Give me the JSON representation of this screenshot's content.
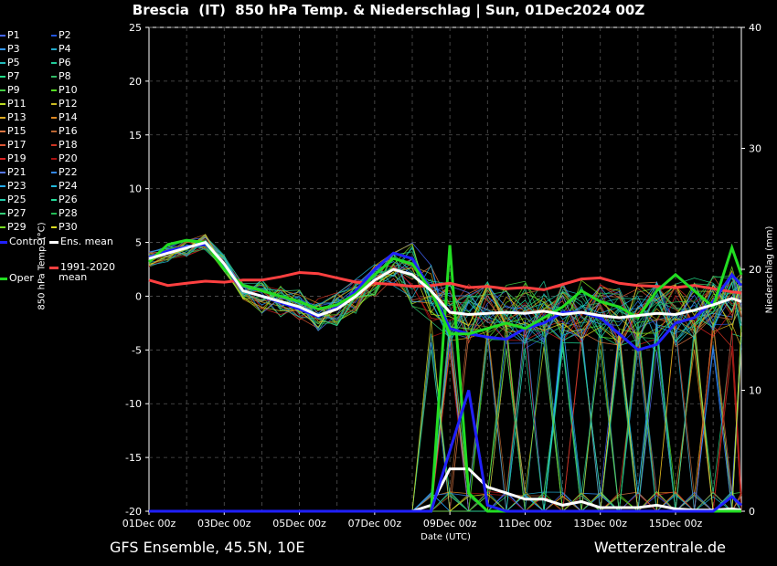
{
  "chart_data": {
    "type": "line",
    "title": "Brescia  (IT)  850 hPa Temp. & Niederschlag | Sun, 01Dec2024 00Z",
    "xlabel": "Date (UTC)",
    "ylabel_left": "850 hPa Temp. (°C)",
    "ylabel_right": "Niederschlag (mm)",
    "ylim_left": [
      -20,
      25
    ],
    "ylim_right": [
      0,
      40
    ],
    "x_ticks": [
      "01Dec 00z",
      "03Dec 00z",
      "05Dec 00z",
      "07Dec 00z",
      "09Dec 00z",
      "11Dec 00z",
      "13Dec 00z",
      "15Dec 00z"
    ],
    "y_ticks_left": [
      -20,
      -15,
      -10,
      -5,
      0,
      5,
      10,
      15,
      20,
      25
    ],
    "y_ticks_right": [
      0,
      10,
      20,
      30,
      40
    ],
    "grid": true,
    "legend_position": "left",
    "days": [
      0,
      0.5,
      1,
      1.5,
      2,
      2.5,
      3,
      3.5,
      4,
      4.5,
      5,
      5.5,
      6,
      6.5,
      7,
      7.5,
      8,
      8.5,
      9,
      9.5,
      10,
      10.5,
      11,
      11.5,
      12,
      12.5,
      13,
      13.5,
      14,
      14.5,
      15,
      15.5,
      15.75
    ],
    "series": [
      {
        "name": "Ens. mean",
        "color": "#ffffff",
        "values": [
          3.5,
          4.0,
          4.5,
          5.0,
          3.0,
          0.5,
          0.0,
          -0.5,
          -1.0,
          -1.8,
          -1.2,
          0.0,
          1.5,
          2.5,
          2.0,
          0.5,
          -1.5,
          -1.7,
          -1.6,
          -1.5,
          -1.6,
          -1.4,
          -1.7,
          -1.5,
          -1.8,
          -2.0,
          -1.8,
          -1.6,
          -1.7,
          -1.3,
          -0.8,
          -0.2,
          -0.5
        ]
      },
      {
        "name": "1991-2020 mean",
        "color": "#ff4040",
        "values": [
          1.5,
          1.0,
          1.2,
          1.4,
          1.3,
          1.5,
          1.5,
          1.8,
          2.2,
          2.1,
          1.7,
          1.3,
          1.2,
          1.1,
          0.9,
          1.0,
          1.2,
          0.8,
          0.9,
          0.7,
          0.8,
          0.6,
          1.1,
          1.6,
          1.7,
          1.2,
          1.0,
          0.9,
          0.8,
          1.0,
          0.7,
          0.4,
          0.3
        ]
      },
      {
        "name": "Oper",
        "color": "#22dd22",
        "values": [
          3.2,
          4.8,
          5.2,
          5.0,
          2.5,
          1.0,
          0.5,
          0.0,
          -0.5,
          -1.2,
          -0.8,
          0.2,
          2.0,
          3.5,
          3.0,
          0.5,
          -3.5,
          -3.5,
          -3.0,
          -2.5,
          -3.0,
          -2.0,
          -1.0,
          0.5,
          -0.5,
          -1.0,
          -2.0,
          0.5,
          2.0,
          0.5,
          -1.0,
          4.5,
          2.0
        ]
      },
      {
        "name": "Control",
        "color": "#2020ff",
        "values": [
          3.6,
          4.2,
          4.6,
          4.8,
          2.8,
          0.5,
          0.0,
          -0.6,
          -1.2,
          -1.9,
          -1.0,
          0.5,
          2.5,
          4.0,
          3.5,
          0.5,
          -3.0,
          -3.5,
          -3.8,
          -4.0,
          -3.0,
          -2.5,
          -1.5,
          -1.5,
          -2.0,
          -3.5,
          -5.0,
          -4.5,
          -2.5,
          -2.0,
          -0.5,
          2.0,
          1.0
        ]
      }
    ],
    "precip_series": [
      {
        "name": "Ens. mean",
        "color": "#ffffff",
        "values": [
          0,
          0,
          0,
          0,
          0,
          0,
          0,
          0,
          0,
          0,
          0,
          0,
          0,
          0,
          0,
          0.5,
          3.5,
          3.5,
          2.0,
          1.5,
          1.0,
          1.0,
          0.5,
          0.8,
          0.3,
          0.3,
          0.3,
          0.5,
          0.2,
          0.1,
          0.1,
          0.2,
          0.1
        ]
      },
      {
        "name": "Oper",
        "color": "#22dd22",
        "values": [
          0,
          0,
          0,
          0,
          0,
          0,
          0,
          0,
          0,
          0,
          0,
          0,
          0,
          0,
          0,
          0,
          22,
          1.5,
          0,
          0,
          0,
          0,
          0,
          0,
          0,
          0,
          0,
          0,
          0,
          0,
          0,
          0,
          0
        ]
      },
      {
        "name": "Control",
        "color": "#2020ff",
        "values": [
          0,
          0,
          0,
          0,
          0,
          0,
          0,
          0,
          0,
          0,
          0,
          0,
          0,
          0,
          0,
          0,
          5,
          10,
          0.5,
          0,
          0,
          0,
          0,
          0,
          0,
          0,
          0,
          0,
          0,
          0,
          0,
          1.2,
          0.5
        ]
      }
    ],
    "members": [
      {
        "name": "P1",
        "color": "#4466ff"
      },
      {
        "name": "P2",
        "color": "#2255dd"
      },
      {
        "name": "P3",
        "color": "#3399ff"
      },
      {
        "name": "P4",
        "color": "#22aacc"
      },
      {
        "name": "P5",
        "color": "#22bbbb"
      },
      {
        "name": "P6",
        "color": "#22cc99"
      },
      {
        "name": "P7",
        "color": "#22dd88"
      },
      {
        "name": "P8",
        "color": "#33bb66"
      },
      {
        "name": "P9",
        "color": "#44cc44"
      },
      {
        "name": "P10",
        "color": "#55dd22"
      },
      {
        "name": "P11",
        "color": "#bbdd22"
      },
      {
        "name": "P12",
        "color": "#ccbb22"
      },
      {
        "name": "P13",
        "color": "#ddaa22"
      },
      {
        "name": "P14",
        "color": "#dd8822"
      },
      {
        "name": "P15",
        "color": "#dd7744"
      },
      {
        "name": "P16",
        "color": "#bb6633"
      },
      {
        "name": "P17",
        "color": "#dd5533"
      },
      {
        "name": "P18",
        "color": "#cc3322"
      },
      {
        "name": "P19",
        "color": "#dd2222"
      },
      {
        "name": "P20",
        "color": "#aa1111"
      },
      {
        "name": "P21",
        "color": "#5577ee"
      },
      {
        "name": "P22",
        "color": "#3388ee"
      },
      {
        "name": "P23",
        "color": "#22aaee"
      },
      {
        "name": "P24",
        "color": "#22bbdd"
      },
      {
        "name": "P25",
        "color": "#22ccaa"
      },
      {
        "name": "P26",
        "color": "#22dd99"
      },
      {
        "name": "P27",
        "color": "#33cc77"
      },
      {
        "name": "P28",
        "color": "#22bb55"
      },
      {
        "name": "P29",
        "color": "#77dd22"
      },
      {
        "name": "P30",
        "color": "#dddd22"
      }
    ],
    "legend": {
      "control_label": "Control",
      "ens_mean_label": "Ens. mean",
      "oper_label": "Oper",
      "clim_label_1": "1991-2020",
      "clim_label_2": "mean"
    }
  },
  "footer": {
    "left": "GFS Ensemble, 45.5N, 10E",
    "right": "Wetterzentrale.de"
  }
}
